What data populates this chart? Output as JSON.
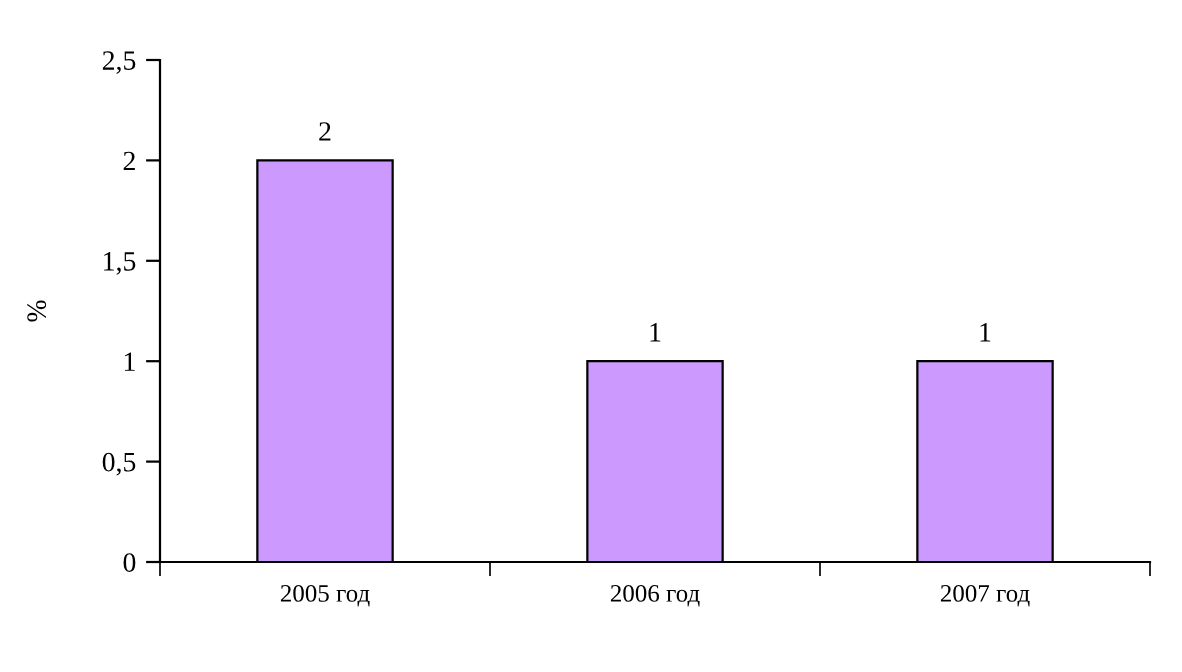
{
  "chart_data": {
    "type": "bar",
    "ylabel": "%",
    "categories": [
      "2005 год",
      "2006 год",
      "2007 год"
    ],
    "values": [
      2,
      1,
      1
    ],
    "color": "#cc99ff",
    "data_labels": true,
    "grid": false,
    "legend": false,
    "ylim": [
      0,
      2.5
    ],
    "yticks": [
      0,
      {
        "value": 0.5,
        "label": "0,5"
      },
      1,
      {
        "value": 1.5,
        "label": "1,5"
      },
      2,
      {
        "value": 2.5,
        "label": "2,5"
      }
    ]
  }
}
